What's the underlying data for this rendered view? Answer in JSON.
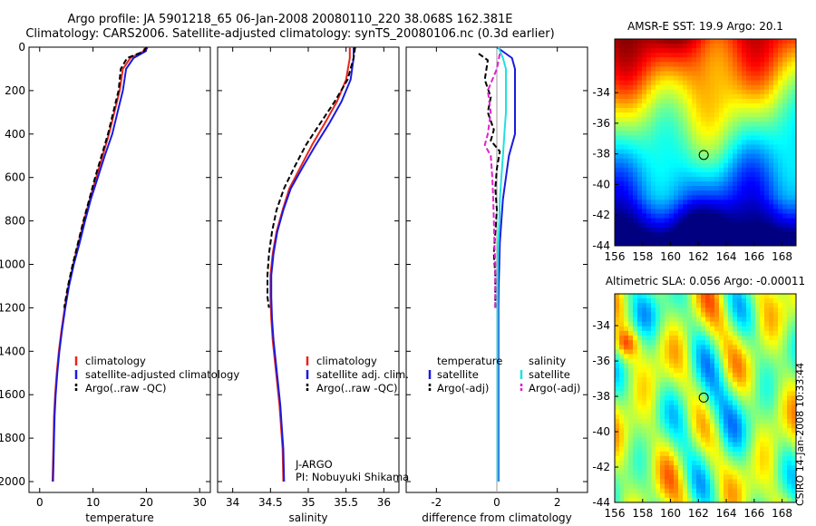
{
  "titles": {
    "line1": "Argo profile: JA 5901218_65 06-Jan-2008 20080110_220 38.068S 162.381E",
    "line2": "Climatology: CARS2006. Satellite-adjusted climatology: synTS_20080106.nc (0.3d earlier)"
  },
  "credit": "CSIRO 14-Jan-2008 10:33:44",
  "colors": {
    "red": "#e8251b",
    "blue": "#1a1adf",
    "black": "#000000",
    "cyan": "#22e0e0",
    "magenta": "#e022d0"
  },
  "chart_data": [
    {
      "id": "temp",
      "type": "line",
      "xlabel": "temperature",
      "ylabel": "",
      "xlim": [
        -2,
        32
      ],
      "ylim": [
        2050,
        0
      ],
      "y_reversed": true,
      "xticks": [
        0,
        10,
        20,
        30
      ],
      "yticks": [
        0,
        200,
        400,
        600,
        800,
        1000,
        1200,
        1400,
        1600,
        1800,
        2000
      ],
      "series": [
        {
          "name": "climatology",
          "color": "red",
          "dash": false,
          "points": [
            [
              19.8,
              0
            ],
            [
              19.4,
              20
            ],
            [
              17.0,
              50
            ],
            [
              15.6,
              100
            ],
            [
              15.0,
              200
            ],
            [
              14.0,
              300
            ],
            [
              13.0,
              400
            ],
            [
              11.8,
              500
            ],
            [
              10.6,
              600
            ],
            [
              9.4,
              700
            ],
            [
              8.3,
              800
            ],
            [
              7.3,
              900
            ],
            [
              6.3,
              1000
            ],
            [
              5.4,
              1100
            ],
            [
              4.7,
              1200
            ],
            [
              4.1,
              1300
            ],
            [
              3.6,
              1400
            ],
            [
              3.2,
              1500
            ],
            [
              2.9,
              1600
            ],
            [
              2.7,
              1700
            ],
            [
              2.6,
              1800
            ],
            [
              2.5,
              1900
            ],
            [
              2.4,
              2000
            ]
          ]
        },
        {
          "name": "satellite-adjusted climatology",
          "color": "blue",
          "dash": false,
          "points": [
            [
              20.2,
              0
            ],
            [
              19.8,
              20
            ],
            [
              17.6,
              50
            ],
            [
              16.2,
              100
            ],
            [
              15.6,
              200
            ],
            [
              14.6,
              300
            ],
            [
              13.6,
              400
            ],
            [
              12.2,
              500
            ],
            [
              10.9,
              600
            ],
            [
              9.6,
              700
            ],
            [
              8.5,
              800
            ],
            [
              7.5,
              900
            ],
            [
              6.4,
              1000
            ],
            [
              5.5,
              1100
            ],
            [
              4.8,
              1200
            ],
            [
              4.2,
              1300
            ],
            [
              3.7,
              1400
            ],
            [
              3.3,
              1500
            ],
            [
              3.0,
              1600
            ],
            [
              2.8,
              1700
            ],
            [
              2.7,
              1800
            ],
            [
              2.6,
              1900
            ],
            [
              2.5,
              2000
            ]
          ]
        },
        {
          "name": "Argo(..raw -QC)",
          "color": "black",
          "dash": true,
          "points": [
            [
              20.0,
              0
            ],
            [
              19.5,
              20
            ],
            [
              16.4,
              50
            ],
            [
              15.2,
              100
            ],
            [
              14.8,
              200
            ],
            [
              13.8,
              300
            ],
            [
              12.8,
              400
            ],
            [
              11.6,
              500
            ],
            [
              10.4,
              600
            ],
            [
              9.3,
              700
            ],
            [
              8.2,
              800
            ],
            [
              7.2,
              900
            ],
            [
              6.2,
              1000
            ],
            [
              5.3,
              1100
            ],
            [
              4.6,
              1200
            ]
          ]
        }
      ],
      "legend": [
        "climatology",
        "satellite-adjusted climatology",
        "Argo(..raw -QC)"
      ]
    },
    {
      "id": "sal",
      "type": "line",
      "xlabel": "salinity",
      "ylabel": "",
      "xlim": [
        33.8,
        36.2
      ],
      "ylim": [
        2050,
        0
      ],
      "y_reversed": true,
      "xticks": [
        34,
        34.5,
        35,
        35.5,
        36
      ],
      "xticklabels": [
        "34",
        "34.5",
        "35",
        "35.5",
        "36"
      ],
      "series": [
        {
          "name": "climatology",
          "color": "red",
          "dash": false,
          "points": [
            [
              35.55,
              0
            ],
            [
              35.55,
              50
            ],
            [
              35.5,
              150
            ],
            [
              35.38,
              250
            ],
            [
              35.22,
              350
            ],
            [
              35.05,
              450
            ],
            [
              34.9,
              550
            ],
            [
              34.75,
              650
            ],
            [
              34.66,
              750
            ],
            [
              34.58,
              850
            ],
            [
              34.53,
              950
            ],
            [
              34.5,
              1050
            ],
            [
              34.5,
              1150
            ],
            [
              34.51,
              1250
            ],
            [
              34.53,
              1350
            ],
            [
              34.56,
              1450
            ],
            [
              34.59,
              1550
            ],
            [
              34.62,
              1650
            ],
            [
              34.64,
              1750
            ],
            [
              34.66,
              1850
            ],
            [
              34.67,
              2000
            ]
          ]
        },
        {
          "name": "satellite adj. clim.",
          "color": "blue",
          "dash": false,
          "points": [
            [
              35.6,
              0
            ],
            [
              35.6,
              50
            ],
            [
              35.56,
              150
            ],
            [
              35.44,
              250
            ],
            [
              35.28,
              350
            ],
            [
              35.1,
              450
            ],
            [
              34.93,
              550
            ],
            [
              34.77,
              650
            ],
            [
              34.67,
              750
            ],
            [
              34.59,
              850
            ],
            [
              34.54,
              950
            ],
            [
              34.51,
              1050
            ],
            [
              34.51,
              1150
            ],
            [
              34.52,
              1250
            ],
            [
              34.54,
              1350
            ],
            [
              34.57,
              1450
            ],
            [
              34.6,
              1550
            ],
            [
              34.63,
              1650
            ],
            [
              34.65,
              1750
            ],
            [
              34.67,
              1850
            ],
            [
              34.68,
              2000
            ]
          ]
        },
        {
          "name": "Argo(..raw -QC)",
          "color": "black",
          "dash": true,
          "points": [
            [
              35.62,
              0
            ],
            [
              35.6,
              50
            ],
            [
              35.52,
              150
            ],
            [
              35.35,
              250
            ],
            [
              35.16,
              350
            ],
            [
              34.97,
              450
            ],
            [
              34.82,
              550
            ],
            [
              34.68,
              650
            ],
            [
              34.58,
              750
            ],
            [
              34.52,
              850
            ],
            [
              34.48,
              950
            ],
            [
              34.46,
              1050
            ],
            [
              34.46,
              1150
            ],
            [
              34.48,
              1200
            ]
          ]
        }
      ],
      "legend": [
        "climatology",
        "satellite adj. clim.",
        "Argo(..raw -QC)"
      ],
      "annotation": [
        "J-ARGO",
        "PI: Nobuyuki Shikama"
      ]
    },
    {
      "id": "diff",
      "type": "line",
      "xlabel": "difference from climatology",
      "ylabel": "",
      "xlim": [
        -3,
        3
      ],
      "ylim": [
        2050,
        0
      ],
      "y_reversed": true,
      "xticks": [
        -2,
        0,
        2
      ],
      "series": [
        {
          "name": "temperature satellite",
          "color": "blue",
          "dash": false,
          "points": [
            [
              0.0,
              0
            ],
            [
              0.5,
              50
            ],
            [
              0.6,
              100
            ],
            [
              0.6,
              200
            ],
            [
              0.6,
              300
            ],
            [
              0.6,
              400
            ],
            [
              0.4,
              500
            ],
            [
              0.3,
              600
            ],
            [
              0.2,
              700
            ],
            [
              0.15,
              800
            ],
            [
              0.1,
              900
            ],
            [
              0.08,
              1000
            ],
            [
              0.06,
              1100
            ],
            [
              0.05,
              1200
            ],
            [
              0.05,
              1400
            ],
            [
              0.05,
              1600
            ],
            [
              0.05,
              1800
            ],
            [
              0.05,
              2000
            ]
          ]
        },
        {
          "name": "temperature Argo(-adj)",
          "color": "black",
          "dash": true,
          "points": [
            [
              -0.6,
              30
            ],
            [
              -0.3,
              60
            ],
            [
              -0.4,
              150
            ],
            [
              -0.2,
              230
            ],
            [
              -0.3,
              300
            ],
            [
              -0.1,
              380
            ],
            [
              -0.2,
              430
            ],
            [
              0.1,
              480
            ],
            [
              0.0,
              560
            ],
            [
              -0.05,
              650
            ],
            [
              0.0,
              750
            ],
            [
              -0.05,
              850
            ],
            [
              -0.1,
              950
            ],
            [
              -0.05,
              1050
            ],
            [
              -0.05,
              1200
            ]
          ]
        },
        {
          "name": "salinity satellite",
          "color": "cyan",
          "dash": false,
          "points": [
            [
              0.05,
              0
            ],
            [
              0.2,
              50
            ],
            [
              0.3,
              100
            ],
            [
              0.3,
              200
            ],
            [
              0.3,
              300
            ],
            [
              0.25,
              400
            ],
            [
              0.2,
              500
            ],
            [
              0.15,
              600
            ],
            [
              0.1,
              700
            ],
            [
              0.08,
              800
            ],
            [
              0.05,
              900
            ],
            [
              0.03,
              1000
            ],
            [
              0.02,
              1200
            ],
            [
              0.02,
              1500
            ],
            [
              0.02,
              2000
            ]
          ]
        },
        {
          "name": "salinity Argo(-adj)",
          "color": "magenta",
          "dash": true,
          "points": [
            [
              0.1,
              30
            ],
            [
              0.0,
              100
            ],
            [
              -0.3,
              200
            ],
            [
              -0.2,
              300
            ],
            [
              -0.3,
              400
            ],
            [
              -0.4,
              450
            ],
            [
              -0.2,
              500
            ],
            [
              -0.15,
              600
            ],
            [
              -0.12,
              700
            ],
            [
              -0.1,
              800
            ],
            [
              -0.08,
              900
            ],
            [
              -0.05,
              1000
            ],
            [
              -0.05,
              1200
            ]
          ]
        }
      ],
      "legend_groups": [
        {
          "heading": "temperature",
          "items": [
            {
              "label": "satellite",
              "color": "blue",
              "dash": false
            },
            {
              "label": "Argo(-adj)",
              "color": "black",
              "dash": true
            }
          ]
        },
        {
          "heading": "salinity",
          "items": [
            {
              "label": "satellite",
              "color": "cyan",
              "dash": false
            },
            {
              "label": "Argo(-adj)",
              "color": "magenta",
              "dash": true
            }
          ]
        }
      ]
    },
    {
      "id": "sst",
      "type": "heatmap",
      "title": "AMSR-E SST: 19.9 Argo: 20.1",
      "xlim": [
        156,
        169
      ],
      "ylim": [
        -44,
        -30.5
      ],
      "xticks": [
        156,
        158,
        160,
        162,
        164,
        166,
        168
      ],
      "yticks": [
        -34,
        -36,
        -38,
        -40,
        -42,
        -44
      ],
      "marker": [
        162.38,
        -38.07
      ],
      "colormap": "jet"
    },
    {
      "id": "sla",
      "type": "heatmap",
      "title": "Altimetric SLA: 0.056 Argo: -0.00011",
      "xlim": [
        156,
        169
      ],
      "ylim": [
        -44,
        -32.2
      ],
      "xticks": [
        156,
        158,
        160,
        162,
        164,
        166,
        168
      ],
      "yticks": [
        -34,
        -36,
        -38,
        -40,
        -42,
        -44
      ],
      "marker": [
        162.38,
        -38.07
      ],
      "colormap": "jet"
    }
  ]
}
